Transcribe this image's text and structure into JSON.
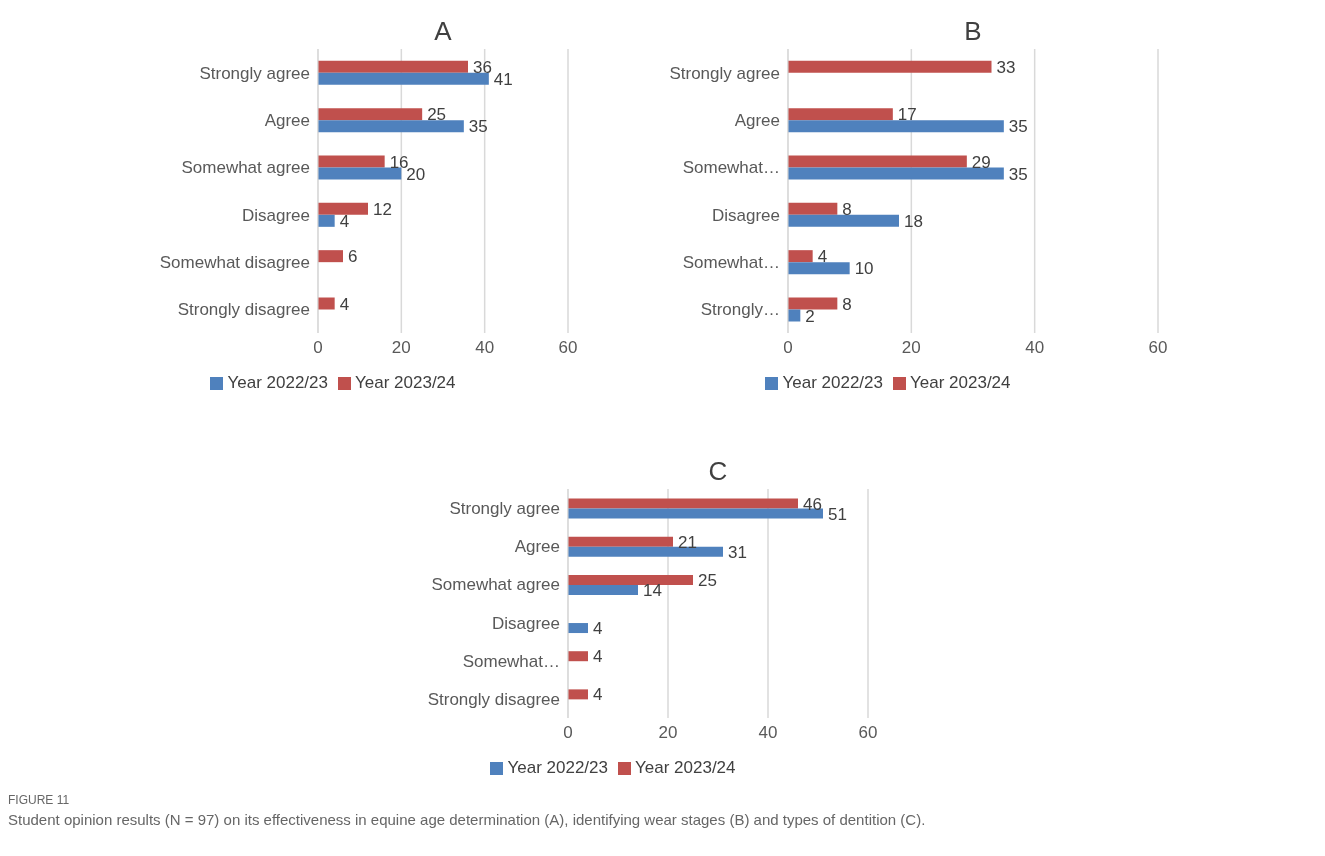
{
  "chart_data": [
    {
      "type": "bar",
      "orientation": "horizontal",
      "title": "A",
      "categories": [
        "Strongly agree",
        "Agree",
        "Somewhat agree",
        "Disagree",
        "Somewhat disagree",
        "Strongly disagree"
      ],
      "series": [
        {
          "name": "Year 2023/24",
          "color": "#c0504d",
          "values": [
            36,
            25,
            16,
            12,
            6,
            4
          ]
        },
        {
          "name": "Year 2022/23",
          "color": "#4f81bd",
          "values": [
            41,
            35,
            20,
            4,
            null,
            null
          ]
        }
      ],
      "xlim": [
        0,
        60
      ],
      "xticks": [
        0,
        20,
        40,
        60
      ],
      "grid": "x",
      "legend": "bottom",
      "data_labels": true
    },
    {
      "type": "bar",
      "orientation": "horizontal",
      "title": "B",
      "categories": [
        "Strongly agree",
        "Agree",
        "Somewhat…",
        "Disagree",
        "Somewhat…",
        "Strongly…"
      ],
      "series": [
        {
          "name": "Year 2023/24",
          "color": "#c0504d",
          "values": [
            33,
            17,
            29,
            8,
            4,
            8
          ]
        },
        {
          "name": "Year 2022/23",
          "color": "#4f81bd",
          "values": [
            null,
            35,
            35,
            18,
            10,
            2
          ]
        }
      ],
      "xlim": [
        0,
        60
      ],
      "xticks": [
        0,
        20,
        40,
        60
      ],
      "grid": "x",
      "legend": "bottom",
      "data_labels": true
    },
    {
      "type": "bar",
      "orientation": "horizontal",
      "title": "C",
      "categories": [
        "Strongly agree",
        "Agree",
        "Somewhat agree",
        "Disagree",
        "Somewhat…",
        "Strongly disagree"
      ],
      "series": [
        {
          "name": "Year 2023/24",
          "color": "#c0504d",
          "values": [
            46,
            21,
            25,
            null,
            4,
            4
          ]
        },
        {
          "name": "Year 2022/23",
          "color": "#4f81bd",
          "values": [
            51,
            31,
            14,
            4,
            null,
            null
          ]
        }
      ],
      "xlim": [
        0,
        60
      ],
      "xticks": [
        0,
        20,
        40,
        60
      ],
      "grid": "x",
      "legend": "bottom",
      "data_labels": true,
      "annotations": [
        "FIGURE 11",
        "Student opinion results (N = 97) on its effectiveness in equine age determination (A), identifying wear stages (B) and types of dentition (C)."
      ]
    }
  ]
}
